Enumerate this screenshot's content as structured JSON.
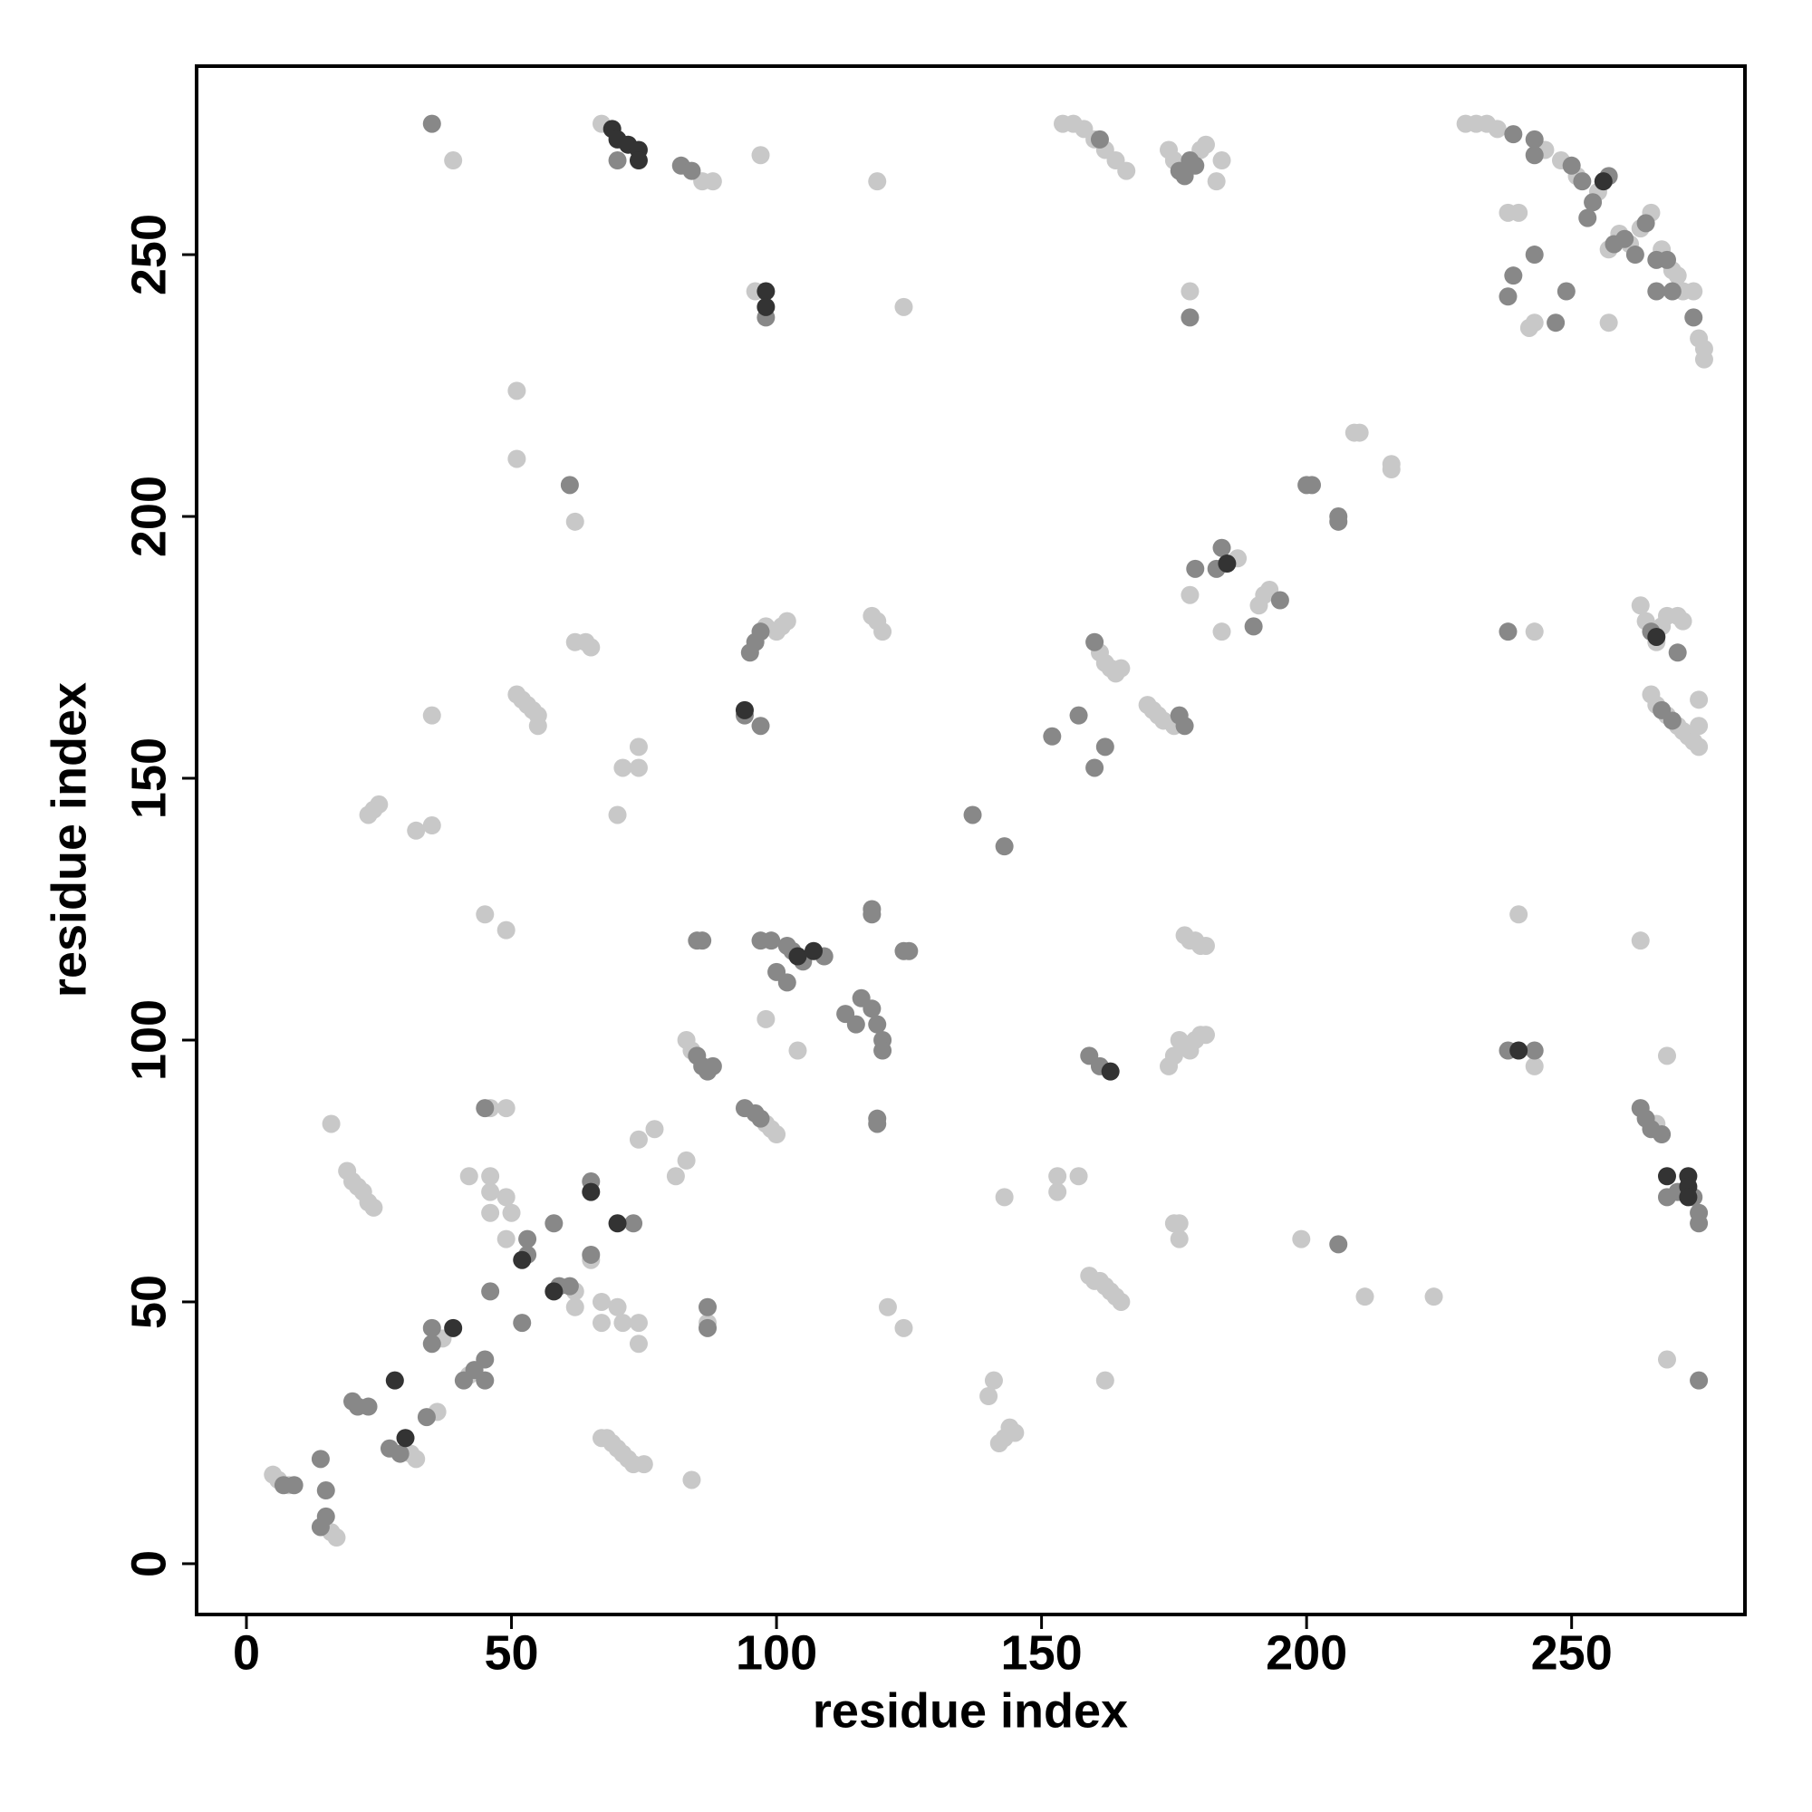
{
  "chart_data": {
    "type": "scatter",
    "x_label": "residue index",
    "y_label": "residue index",
    "xlim": [
      -9.4,
      282.7
    ],
    "ylim": [
      -9.7,
      286
    ],
    "xticks": [
      0,
      50,
      100,
      150,
      200,
      250
    ],
    "yticks": [
      0,
      50,
      100,
      150,
      200,
      250
    ],
    "series": [
      {
        "color": "#c8c8c8",
        "x": [
          5,
          6,
          8,
          16,
          17,
          16,
          19,
          20,
          21,
          22,
          23,
          24,
          31,
          32,
          23,
          24,
          25,
          32,
          35,
          35,
          39,
          36,
          37,
          42,
          42,
          46,
          49,
          46,
          46,
          46,
          49,
          50,
          49,
          45,
          49,
          51,
          51,
          51,
          52,
          53,
          54,
          55,
          55,
          62,
          62,
          62,
          62,
          64,
          65,
          65,
          67,
          68,
          69,
          70,
          71,
          72,
          73,
          75,
          67,
          70,
          71,
          67,
          74,
          74,
          67,
          70,
          71,
          74,
          74,
          74,
          77,
          81,
          83,
          84,
          83,
          84,
          87,
          86,
          88,
          98,
          99,
          100,
          98,
          100,
          101,
          102,
          96,
          97,
          98,
          104,
          118,
          119,
          120,
          119,
          121,
          124,
          124,
          143,
          140,
          141,
          142,
          143,
          144,
          145,
          153,
          153,
          157,
          161,
          162,
          163,
          164,
          165,
          154,
          156,
          158,
          160,
          162,
          164,
          166,
          159,
          160,
          161,
          162,
          163,
          164,
          165,
          162,
          170,
          171,
          172,
          173,
          175,
          174,
          175,
          180,
          181,
          183,
          184,
          174,
          175,
          176,
          177,
          178,
          179,
          180,
          181,
          175,
          176,
          176,
          177,
          178,
          179,
          180,
          181,
          178,
          178,
          187,
          184,
          191,
          192,
          193,
          199,
          209,
          210,
          211,
          216,
          216,
          224,
          230,
          232,
          234,
          236,
          243,
          240,
          243,
          240,
          238,
          242,
          243,
          245,
          248,
          251,
          255,
          257,
          259,
          261,
          263,
          265,
          267,
          269,
          270,
          271,
          273,
          257,
          274,
          275,
          275,
          263,
          264,
          266,
          267,
          268,
          270,
          271,
          265,
          266,
          268,
          270,
          271,
          272,
          273,
          274,
          274,
          274,
          263,
          268,
          268,
          266
        ],
        "values": [
          17,
          16,
          15,
          6,
          5,
          84,
          75,
          73,
          72,
          71,
          69,
          68,
          21,
          20,
          143,
          144,
          145,
          140,
          141,
          162,
          268,
          29,
          43,
          36,
          74,
          87,
          87,
          74,
          71,
          67,
          70,
          67,
          62,
          124,
          121,
          224,
          211,
          166,
          165,
          164,
          163,
          162,
          160,
          49,
          52,
          199,
          176,
          176,
          175,
          58,
          24,
          24,
          23,
          22,
          21,
          20,
          19,
          19,
          50,
          49,
          46,
          46,
          46,
          42,
          275,
          143,
          152,
          152,
          156,
          81,
          83,
          74,
          77,
          16,
          100,
          98,
          46,
          264,
          264,
          84,
          83,
          82,
          179,
          178,
          179,
          180,
          243,
          269,
          104,
          98,
          181,
          180,
          178,
          264,
          49,
          45,
          240,
          70,
          32,
          35,
          23,
          24,
          26,
          25,
          71,
          74,
          74,
          174,
          172,
          171,
          170,
          171,
          275,
          275,
          274,
          272,
          270,
          268,
          266,
          55,
          54,
          54,
          53,
          52,
          51,
          50,
          35,
          164,
          163,
          162,
          161,
          160,
          270,
          268,
          270,
          271,
          264,
          268,
          95,
          97,
          100,
          99,
          98,
          100,
          101,
          101,
          65,
          65,
          62,
          120,
          119,
          119,
          118,
          118,
          243,
          185,
          192,
          178,
          183,
          185,
          186,
          62,
          216,
          216,
          51,
          209,
          210,
          51,
          275,
          275,
          275,
          274,
          178,
          124,
          95,
          258,
          258,
          236,
          237,
          270,
          268,
          265,
          262,
          251,
          254,
          252,
          255,
          258,
          251,
          247,
          246,
          243,
          243,
          237,
          234,
          232,
          230,
          183,
          180,
          176,
          179,
          181,
          181,
          180,
          166,
          164,
          162,
          160,
          159,
          158,
          157,
          156,
          160,
          165,
          119,
          97,
          39,
          84
        ]
      },
      {
        "color": "#888888",
        "x": [
          7,
          9,
          14,
          15,
          14,
          15,
          20,
          21,
          23,
          27,
          29,
          34,
          35,
          35,
          41,
          43,
          45,
          45,
          45,
          46,
          35,
          53,
          53,
          52,
          58,
          59,
          61,
          61,
          65,
          65,
          73,
          70,
          85,
          86,
          87,
          88,
          87,
          87,
          82,
          84,
          85,
          86,
          94,
          96,
          97,
          94,
          97,
          95,
          96,
          97,
          98,
          97,
          99,
          102,
          103,
          105,
          109,
          100,
          102,
          113,
          115,
          116,
          118,
          119,
          120,
          120,
          118,
          118,
          119,
          119,
          124,
          125,
          137,
          143,
          152,
          157,
          160,
          160,
          162,
          161,
          159,
          161,
          176,
          177,
          176,
          177,
          178,
          179,
          178,
          179,
          183,
          184,
          190,
          195,
          200,
          201,
          206,
          206,
          206,
          239,
          238,
          238,
          243,
          238,
          239,
          247,
          243,
          249,
          243,
          243,
          250,
          252,
          254,
          257,
          253,
          258,
          260,
          262,
          264,
          266,
          268,
          266,
          269,
          273,
          265,
          270,
          267,
          269,
          263,
          264,
          265,
          267,
          270,
          273,
          274,
          274,
          268,
          274
        ],
        "values": [
          15,
          15,
          7,
          9,
          20,
          14,
          31,
          30,
          30,
          22,
          21,
          28,
          45,
          42,
          35,
          37,
          39,
          35,
          87,
          52,
          275,
          62,
          59,
          46,
          65,
          53,
          53,
          206,
          73,
          59,
          65,
          268,
          97,
          95,
          94,
          95,
          49,
          45,
          267,
          266,
          119,
          119,
          87,
          86,
          85,
          162,
          160,
          174,
          176,
          178,
          238,
          119,
          119,
          118,
          117,
          115,
          116,
          113,
          111,
          105,
          103,
          108,
          106,
          103,
          100,
          98,
          125,
          124,
          85,
          84,
          117,
          117,
          143,
          137,
          158,
          162,
          152,
          176,
          156,
          272,
          97,
          95,
          162,
          160,
          266,
          265,
          268,
          267,
          238,
          190,
          190,
          194,
          179,
          184,
          206,
          206,
          199,
          200,
          61,
          273,
          178,
          98,
          98,
          242,
          246,
          237,
          250,
          243,
          272,
          269,
          267,
          264,
          260,
          265,
          257,
          252,
          253,
          250,
          256,
          249,
          249,
          243,
          243,
          238,
          178,
          174,
          163,
          161,
          87,
          85,
          83,
          82,
          71,
          70,
          67,
          65,
          70,
          35
        ]
      },
      {
        "color": "#333333",
        "x": [
          28,
          30,
          39,
          52,
          58,
          65,
          70,
          69,
          70,
          72,
          74,
          74,
          94,
          98,
          98,
          104,
          107,
          163,
          185,
          240,
          266,
          268,
          272,
          272,
          272,
          256
        ],
        "values": [
          35,
          24,
          45,
          58,
          52,
          71,
          65,
          274,
          272,
          271,
          270,
          268,
          163,
          243,
          240,
          116,
          117,
          94,
          191,
          98,
          177,
          74,
          74,
          72,
          70,
          264
        ]
      }
    ]
  }
}
